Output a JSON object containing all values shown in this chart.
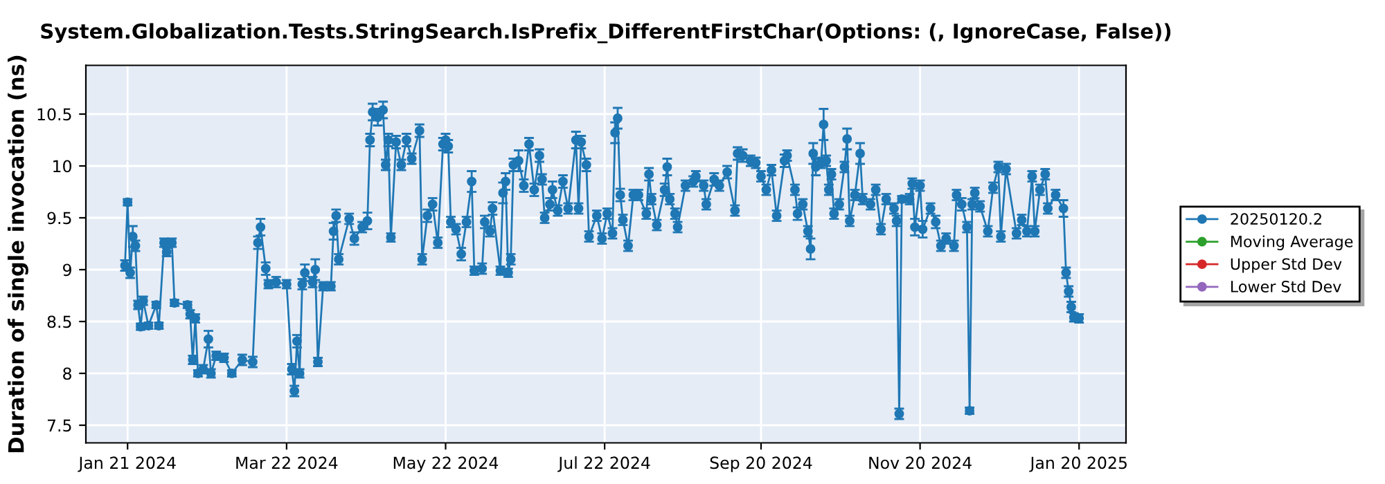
{
  "chart_data": {
    "type": "line",
    "title": "System.Globalization.Tests.StringSearch.IsPrefix_DifferentFirstChar(Options: (, IgnoreCase, False))",
    "ylabel": "Duration of single invocation (ns)",
    "xlim": [
      "2024-01-05",
      "2025-02-07"
    ],
    "xticks": [
      {
        "value": "2024-01-21",
        "label": "Jan 21 2024"
      },
      {
        "value": "2024-03-22",
        "label": "Mar 22 2024"
      },
      {
        "value": "2024-05-22",
        "label": "May 22 2024"
      },
      {
        "value": "2024-07-22",
        "label": "Jul 22 2024"
      },
      {
        "value": "2024-09-20",
        "label": "Sep 20 2024"
      },
      {
        "value": "2024-11-20",
        "label": "Nov 20 2024"
      },
      {
        "value": "2025-01-20",
        "label": "Jan 20 2025"
      }
    ],
    "ylim": [
      7.33,
      10.97
    ],
    "yticks": [
      7.5,
      8,
      8.5,
      9,
      9.5,
      10,
      10.5
    ],
    "grid": true,
    "legend": "right",
    "marker": "circle",
    "line_style": "solid",
    "series": [
      {
        "name": "20250120.2",
        "color": "#1f77b4",
        "x": [
          "2024-01-20",
          "2024-01-21",
          "2024-01-22",
          "2024-01-23",
          "2024-01-24",
          "2024-01-25",
          "2024-01-26",
          "2024-01-27",
          "2024-01-29",
          "2024-02-01",
          "2024-02-02",
          "2024-02-04",
          "2024-02-05",
          "2024-02-07",
          "2024-02-08",
          "2024-02-13",
          "2024-02-14",
          "2024-02-15",
          "2024-02-16",
          "2024-02-17",
          "2024-02-19",
          "2024-02-21",
          "2024-02-22",
          "2024-02-24",
          "2024-02-27",
          "2024-03-01",
          "2024-03-05",
          "2024-03-09",
          "2024-03-11",
          "2024-03-12",
          "2024-03-14",
          "2024-03-15",
          "2024-03-18",
          "2024-03-22",
          "2024-03-24",
          "2024-03-25",
          "2024-03-26",
          "2024-03-27",
          "2024-03-28",
          "2024-03-29",
          "2024-04-01",
          "2024-04-02",
          "2024-04-03",
          "2024-04-05",
          "2024-04-08",
          "2024-04-09",
          "2024-04-10",
          "2024-04-11",
          "2024-04-15",
          "2024-04-17",
          "2024-04-20",
          "2024-04-22",
          "2024-04-23",
          "2024-04-24",
          "2024-04-26",
          "2024-04-28",
          "2024-04-29",
          "2024-04-30",
          "2024-05-01",
          "2024-05-03",
          "2024-05-05",
          "2024-05-07",
          "2024-05-09",
          "2024-05-12",
          "2024-05-13",
          "2024-05-15",
          "2024-05-17",
          "2024-05-19",
          "2024-05-21",
          "2024-05-22",
          "2024-05-23",
          "2024-05-24",
          "2024-05-26",
          "2024-05-28",
          "2024-05-30",
          "2024-06-01",
          "2024-06-02",
          "2024-06-05",
          "2024-06-06",
          "2024-06-08",
          "2024-06-09",
          "2024-06-12",
          "2024-06-13",
          "2024-06-14",
          "2024-06-15",
          "2024-06-16",
          "2024-06-17",
          "2024-06-19",
          "2024-06-21",
          "2024-06-23",
          "2024-06-25",
          "2024-06-27",
          "2024-06-28",
          "2024-06-29",
          "2024-07-01",
          "2024-07-02",
          "2024-07-04",
          "2024-07-06",
          "2024-07-08",
          "2024-07-11",
          "2024-07-12",
          "2024-07-13",
          "2024-07-15",
          "2024-07-16",
          "2024-07-19",
          "2024-07-21",
          "2024-07-23",
          "2024-07-25",
          "2024-07-26",
          "2024-07-27",
          "2024-07-28",
          "2024-07-29",
          "2024-07-31",
          "2024-08-02",
          "2024-08-04",
          "2024-08-07",
          "2024-08-08",
          "2024-08-09",
          "2024-08-11",
          "2024-08-14",
          "2024-08-15",
          "2024-08-16",
          "2024-08-18",
          "2024-08-19",
          "2024-08-22",
          "2024-08-25",
          "2024-08-26",
          "2024-08-29",
          "2024-08-30",
          "2024-09-02",
          "2024-09-04",
          "2024-09-07",
          "2024-09-10",
          "2024-09-11",
          "2024-09-13",
          "2024-09-16",
          "2024-09-18",
          "2024-09-20",
          "2024-09-22",
          "2024-09-24",
          "2024-09-26",
          "2024-09-29",
          "2024-09-30",
          "2024-10-03",
          "2024-10-04",
          "2024-10-06",
          "2024-10-08",
          "2024-10-09",
          "2024-10-10",
          "2024-10-11",
          "2024-10-13",
          "2024-10-14",
          "2024-10-15",
          "2024-10-16",
          "2024-10-17",
          "2024-10-18",
          "2024-10-20",
          "2024-10-22",
          "2024-10-23",
          "2024-10-24",
          "2024-10-26",
          "2024-10-28",
          "2024-10-29",
          "2024-11-01",
          "2024-11-03",
          "2024-11-05",
          "2024-11-07",
          "2024-11-10",
          "2024-11-11",
          "2024-11-12",
          "2024-11-13",
          "2024-11-16",
          "2024-11-17",
          "2024-11-18",
          "2024-11-20",
          "2024-11-21",
          "2024-11-24",
          "2024-11-26",
          "2024-11-28",
          "2024-11-30",
          "2024-12-03",
          "2024-12-04",
          "2024-12-06",
          "2024-12-08",
          "2024-12-09",
          "2024-12-10",
          "2024-12-11",
          "2024-12-13",
          "2024-12-16",
          "2024-12-18",
          "2024-12-20",
          "2024-12-21",
          "2024-12-23",
          "2024-12-27",
          "2024-12-29",
          "2024-12-31",
          "2025-01-02",
          "2025-01-03",
          "2025-01-05",
          "2025-01-07",
          "2025-01-08",
          "2025-01-11",
          "2025-01-14",
          "2025-01-15",
          "2025-01-16",
          "2025-01-17",
          "2025-01-18",
          "2025-01-20"
        ],
        "values": [
          9.04,
          9.65,
          8.97,
          9.32,
          9.23,
          8.66,
          8.45,
          8.7,
          8.46,
          8.66,
          8.46,
          9.26,
          9.17,
          9.26,
          8.68,
          8.66,
          8.57,
          8.13,
          8.53,
          8.0,
          8.04,
          8.33,
          8.0,
          8.17,
          8.15,
          8.0,
          8.13,
          8.11,
          9.26,
          9.41,
          9.01,
          8.86,
          8.88,
          8.86,
          8.04,
          7.83,
          8.31,
          8.0,
          8.86,
          8.97,
          8.88,
          9.0,
          8.11,
          8.84,
          8.84,
          9.37,
          9.52,
          9.1,
          9.49,
          9.3,
          9.41,
          9.47,
          10.25,
          10.52,
          10.47,
          10.54,
          10.01,
          10.25,
          9.31,
          10.23,
          10.01,
          10.25,
          10.07,
          10.34,
          9.1,
          9.52,
          9.63,
          9.26,
          10.21,
          10.25,
          10.19,
          9.46,
          9.39,
          9.15,
          9.46,
          9.85,
          8.99,
          9.01,
          9.46,
          9.37,
          9.59,
          8.99,
          9.74,
          9.85,
          8.97,
          9.1,
          10.01,
          10.05,
          9.81,
          10.21,
          9.77,
          10.1,
          9.87,
          9.5,
          9.63,
          9.77,
          9.57,
          9.85,
          9.59,
          10.25,
          9.59,
          10.23,
          10.01,
          9.32,
          9.52,
          9.3,
          9.54,
          9.35,
          10.32,
          10.46,
          9.72,
          9.48,
          9.23,
          9.72,
          9.72,
          9.54,
          9.92,
          9.68,
          9.43,
          9.77,
          9.99,
          9.68,
          9.54,
          9.41,
          9.81,
          9.85,
          9.9,
          9.81,
          9.63,
          9.87,
          9.81,
          9.94,
          9.57,
          10.12,
          10.1,
          10.05,
          10.03,
          9.9,
          9.77,
          9.96,
          9.52,
          10.05,
          10.1,
          9.77,
          9.54,
          9.63,
          9.37,
          9.2,
          10.12,
          9.99,
          10.03,
          10.4,
          10.05,
          9.77,
          9.92,
          9.54,
          9.63,
          9.99,
          10.26,
          9.47,
          9.72,
          10.12,
          9.68,
          9.63,
          9.77,
          9.39,
          9.68,
          9.59,
          9.47,
          7.61,
          9.68,
          9.68,
          9.83,
          9.41,
          9.81,
          9.39,
          9.59,
          9.46,
          9.23,
          9.3,
          9.23,
          9.72,
          9.63,
          9.41,
          7.64,
          9.63,
          9.74,
          9.61,
          9.37,
          9.79,
          9.99,
          9.32,
          9.97,
          9.35,
          9.48,
          9.37,
          9.9,
          9.37,
          9.77,
          9.92,
          9.59,
          9.72,
          9.59,
          8.97,
          8.79,
          8.64,
          8.54,
          8.53
        ],
        "errors": [
          0.05,
          0.03,
          0.05,
          0.1,
          0.05,
          0.04,
          0.03,
          0.04,
          0.03,
          0.03,
          0.03,
          0.04,
          0.04,
          0.04,
          0.03,
          0.03,
          0.04,
          0.04,
          0.04,
          0.03,
          0.04,
          0.08,
          0.04,
          0.04,
          0.04,
          0.03,
          0.05,
          0.05,
          0.06,
          0.08,
          0.06,
          0.04,
          0.05,
          0.04,
          0.05,
          0.05,
          0.06,
          0.04,
          0.05,
          0.08,
          0.05,
          0.1,
          0.04,
          0.04,
          0.04,
          0.08,
          0.06,
          0.05,
          0.05,
          0.06,
          0.05,
          0.08,
          0.06,
          0.08,
          0.08,
          0.08,
          0.05,
          0.06,
          0.04,
          0.06,
          0.05,
          0.06,
          0.05,
          0.06,
          0.05,
          0.06,
          0.06,
          0.05,
          0.06,
          0.06,
          0.06,
          0.05,
          0.05,
          0.06,
          0.05,
          0.1,
          0.04,
          0.05,
          0.06,
          0.05,
          0.06,
          0.04,
          0.1,
          0.08,
          0.04,
          0.05,
          0.06,
          0.1,
          0.06,
          0.06,
          0.06,
          0.06,
          0.05,
          0.05,
          0.06,
          0.08,
          0.05,
          0.06,
          0.05,
          0.08,
          0.05,
          0.06,
          0.06,
          0.05,
          0.05,
          0.05,
          0.05,
          0.05,
          0.1,
          0.1,
          0.06,
          0.05,
          0.05,
          0.05,
          0.05,
          0.05,
          0.06,
          0.05,
          0.05,
          0.06,
          0.08,
          0.05,
          0.05,
          0.05,
          0.05,
          0.05,
          0.05,
          0.05,
          0.05,
          0.06,
          0.05,
          0.06,
          0.05,
          0.06,
          0.06,
          0.05,
          0.05,
          0.05,
          0.05,
          0.05,
          0.05,
          0.06,
          0.05,
          0.05,
          0.06,
          0.05,
          0.05,
          0.1,
          0.1,
          0.08,
          0.05,
          0.15,
          0.05,
          0.05,
          0.05,
          0.05,
          0.05,
          0.05,
          0.1,
          0.05,
          0.05,
          0.1,
          0.05,
          0.05,
          0.05,
          0.05,
          0.05,
          0.05,
          0.05,
          0.05,
          0.03,
          0.05,
          0.05,
          0.08,
          0.05,
          0.08,
          0.05,
          0.06,
          0.05,
          0.05,
          0.05,
          0.05,
          0.06,
          0.05,
          0.03,
          0.05,
          0.05,
          0.05,
          0.05,
          0.05,
          0.05,
          0.05,
          0.05,
          0.05,
          0.05,
          0.05,
          0.05,
          0.05,
          0.05,
          0.05,
          0.05,
          0.05,
          0.08,
          0.05,
          0.05,
          0.05,
          0.04,
          0.04
        ]
      },
      {
        "name": "Moving Average",
        "color": "#2ca02c"
      },
      {
        "name": "Upper Std Dev",
        "color": "#d62728"
      },
      {
        "name": "Lower Std Dev",
        "color": "#9467bd"
      }
    ]
  }
}
